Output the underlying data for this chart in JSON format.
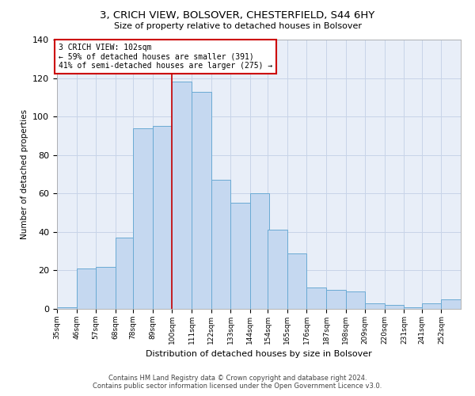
{
  "title_line1": "3, CRICH VIEW, BOLSOVER, CHESTERFIELD, S44 6HY",
  "title_line2": "Size of property relative to detached houses in Bolsover",
  "xlabel": "Distribution of detached houses by size in Bolsover",
  "ylabel": "Number of detached properties",
  "bins": [
    35,
    46,
    57,
    68,
    78,
    89,
    100,
    111,
    122,
    133,
    144,
    154,
    165,
    176,
    187,
    198,
    209,
    220,
    231,
    241,
    252
  ],
  "counts": [
    1,
    21,
    22,
    37,
    94,
    95,
    118,
    113,
    67,
    55,
    60,
    41,
    29,
    11,
    10,
    9,
    3,
    2,
    1,
    3,
    5
  ],
  "bar_color": "#c5d8f0",
  "bar_edge_color": "#6aaad4",
  "vline_x": 100,
  "vline_color": "#cc0000",
  "annotation_text": "3 CRICH VIEW: 102sqm\n← 59% of detached houses are smaller (391)\n41% of semi-detached houses are larger (275) →",
  "annotation_box_color": "#ffffff",
  "annotation_box_edge": "#cc0000",
  "ylim": [
    0,
    140
  ],
  "bg_color": "#e8eef8",
  "grid_color": "#c8d4e8",
  "footer_line1": "Contains HM Land Registry data © Crown copyright and database right 2024.",
  "footer_line2": "Contains public sector information licensed under the Open Government Licence v3.0."
}
